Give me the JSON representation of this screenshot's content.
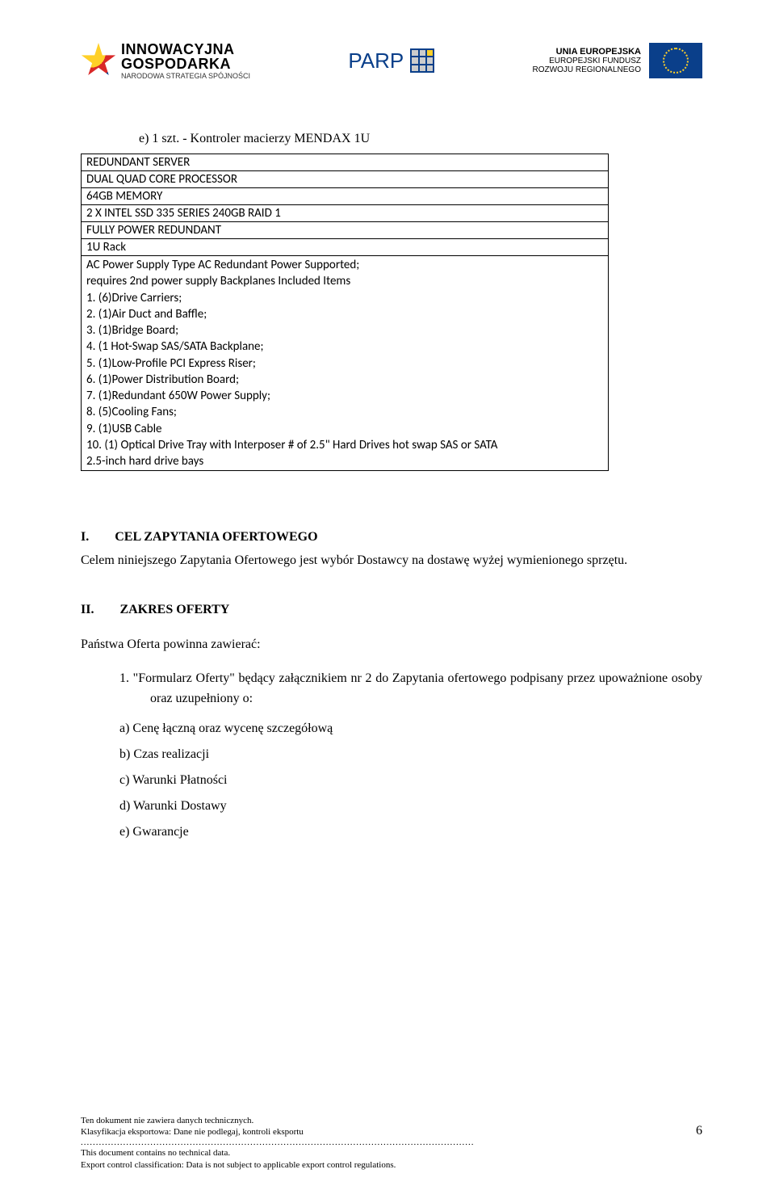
{
  "header": {
    "ig_line1": "INNOWACYJNA",
    "ig_line2": "GOSPODARKA",
    "ig_sub": "NARODOWA STRATEGIA SPÓJNOŚCI",
    "parp": "PARP",
    "eu_line1": "UNIA EUROPEJSKA",
    "eu_line2": "EUROPEJSKI FUNDUSZ",
    "eu_line3": "ROZWOJU REGIONALNEGO"
  },
  "item_e": "e)  1 szt.  - Kontroler macierzy MENDAX 1U",
  "spec_rows": [
    "REDUNDANT SERVER",
    "DUAL QUAD CORE PROCESSOR",
    "64GB MEMORY",
    "2 X INTEL SSD 335 SERIES 240GB RAID 1",
    "FULLY POWER REDUNDANT",
    "1U Rack"
  ],
  "spec_last": "AC Power Supply Type AC Redundant Power Supported;\nrequires 2nd power supply Backplanes Included Items\n1.   (6)Drive Carriers;\n2.   (1)Air Duct and Baffle;\n3.   (1)Bridge Board;\n4.   (1 Hot-Swap SAS/SATA Backplane;\n5.   (1)Low-Profile PCI Express Riser;\n6.   (1)Power Distribution Board;\n7.   (1)Redundant 650W Power Supply;\n8.   (5)Cooling Fans;\n9.   (1)USB Cable\n10.  (1) Optical Drive Tray with Interposer # of 2.5\" Hard Drives  hot swap SAS or SATA\n2.5-inch hard drive bays",
  "section1": {
    "num": "I.",
    "title": "CEL ZAPYTANIA OFERTOWEGO",
    "body": "Celem niniejszego Zapytania Ofertowego jest wybór Dostawcy na dostawę wyżej wymienionego sprzętu."
  },
  "section2": {
    "num": "II.",
    "title": "ZAKRES OFERTY",
    "lead": "Państwa Oferta powinna zawierać:",
    "item1": "1.     \"Formularz Oferty\" będący załącznikiem nr 2 do Zapytania ofertowego podpisany przez upoważnione osoby oraz uzupełniony o:",
    "sub_a": "a) Cenę łączną oraz wycenę szczegółową",
    "sub_b": "b) Czas realizacji",
    "sub_c": "c) Warunki Płatności",
    "sub_d": "d) Warunki Dostawy",
    "sub_e": "e) Gwarancje"
  },
  "footer": {
    "pl1": "Ten dokument nie zawiera danych technicznych.",
    "pl2": "Klasyfikacja eksportowa: Dane nie podlegaj, kontroli eksportu",
    "en1": "This document contains no technical data.",
    "en2": "Export control classification: Data is not subject to applicable export control regulations.",
    "page": "6"
  },
  "colors": {
    "text": "#000000",
    "eu_blue": "#0a3f8a",
    "eu_gold": "#ffd028"
  }
}
